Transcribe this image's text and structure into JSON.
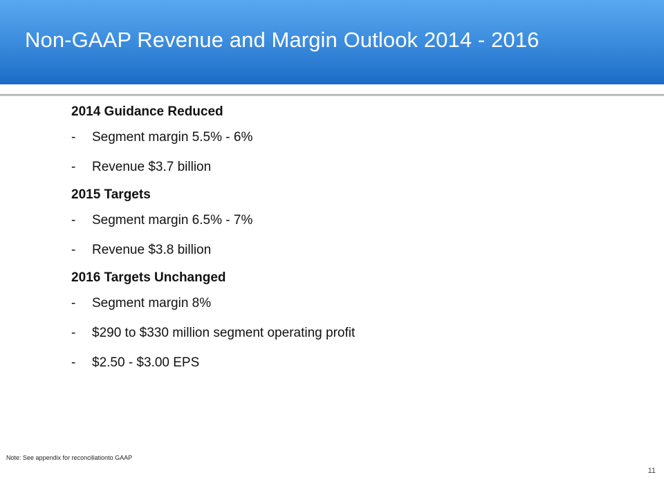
{
  "slide": {
    "title": "Non-GAAP Revenue and Margin Outlook 2014 - 2016",
    "sections": [
      {
        "heading": "2014 Guidance Reduced",
        "bullets": [
          {
            "marker": "-",
            "text": "Segment margin 5.5% - 6%"
          },
          {
            "marker": "-",
            "text": "Revenue $3.7 billion"
          }
        ]
      },
      {
        "heading": "2015 Targets",
        "bullets": [
          {
            "marker": "-",
            "text": "Segment margin 6.5% - 7%"
          },
          {
            "marker": "-",
            "text": "Revenue $3.8 billion"
          }
        ]
      },
      {
        "heading": "2016 Targets Unchanged",
        "bullets": [
          {
            "marker": "-",
            "text": "Segment margin 8%"
          },
          {
            "marker": "-",
            "text": "$290 to $330 million segment operating profit"
          },
          {
            "marker": "-",
            "text": "$2.50 - $3.00 EPS"
          }
        ]
      }
    ],
    "footnote": "Note:   See appendix for reconciliationto GAAP",
    "page_number": "11",
    "colors": {
      "header_top": "#58a8f0",
      "header_bottom": "#1a6cc6",
      "title_text": "#ffffff",
      "body_text": "#111111"
    }
  }
}
